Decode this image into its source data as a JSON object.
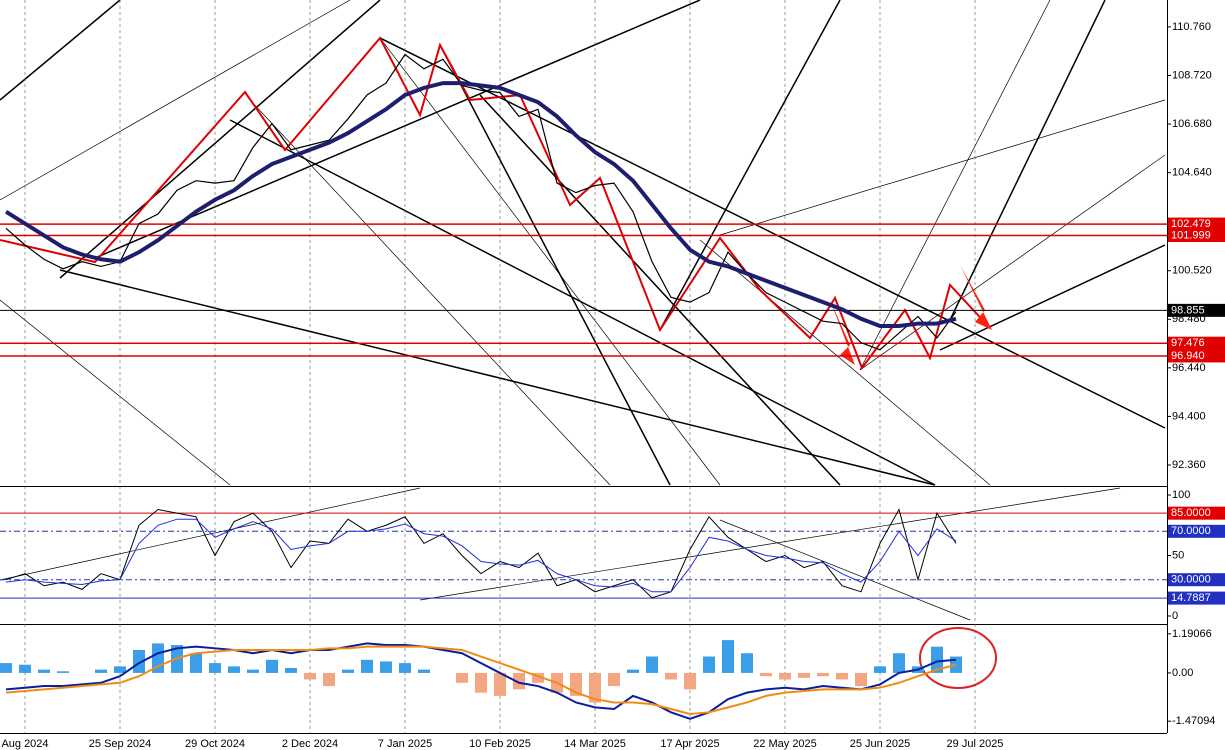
{
  "chart_data": [
    {
      "type": "line",
      "categories": [
        null,
        "Aug 2024",
        null,
        null,
        null,
        null,
        "25 Sep 2024",
        null,
        null,
        null,
        null,
        "29 Oct 2024",
        null,
        null,
        null,
        null,
        "2 Dec 2024",
        null,
        null,
        null,
        null,
        "7 Jan 2025",
        null,
        null,
        null,
        null,
        "10 Feb 2025",
        null,
        null,
        null,
        null,
        "14 Mar 2025",
        null,
        null,
        null,
        null,
        "17 Apr 2025",
        null,
        null,
        null,
        null,
        "22 May 2025",
        null,
        null,
        null,
        null,
        "25 Jun 2025",
        null,
        null,
        null,
        null,
        "29 Jul 2025"
      ],
      "series": [
        {
          "color": "#000000",
          "width": 1.2,
          "values": [
            102.3,
            101.6,
            101.0,
            100.6,
            100.9,
            100.7,
            100.9,
            102.5,
            102.9,
            103.9,
            104.3,
            104.2,
            104.3,
            105.7,
            106.7,
            105.6,
            105.8,
            106.0,
            106.9,
            107.9,
            108.4,
            109.6,
            109.0,
            109.4,
            108.3,
            108.1,
            108.0,
            107.0,
            107.3,
            104.2,
            103.8,
            104.1,
            104.2,
            103.0,
            100.9,
            99.4,
            99.2,
            99.6,
            101.3,
            100.4,
            99.6,
            99.2,
            98.8,
            98.4,
            98.3,
            97.5,
            97.2,
            97.9,
            98.6,
            97.7,
            98.8,
            null
          ]
        },
        {
          "color": "#1e1e6e",
          "width": 4,
          "values": [
            103.0,
            102.5,
            102.0,
            101.5,
            101.2,
            101.0,
            100.9,
            101.3,
            101.8,
            102.4,
            103.0,
            103.5,
            103.9,
            104.5,
            105.0,
            105.3,
            105.6,
            105.9,
            106.3,
            106.8,
            107.3,
            107.9,
            108.2,
            108.4,
            108.4,
            108.3,
            108.2,
            107.9,
            107.6,
            107.0,
            106.2,
            105.5,
            105.0,
            104.3,
            103.3,
            102.3,
            101.4,
            100.9,
            100.7,
            100.4,
            100.1,
            99.8,
            99.5,
            99.2,
            98.9,
            98.5,
            98.2,
            98.2,
            98.3,
            98.3,
            98.5,
            null
          ]
        }
      ],
      "ylim": [
        91.52,
        111.89
      ],
      "yticks": [
        {
          "value": 92.36,
          "label": "92.360"
        },
        {
          "value": 94.4,
          "label": "94.400"
        },
        {
          "value": 96.44,
          "label": "96.440"
        },
        {
          "value": 98.48,
          "label": "98.480"
        },
        {
          "value": 100.52,
          "label": "100.520"
        },
        {
          "value": 104.64,
          "label": "104.640"
        },
        {
          "value": 106.68,
          "label": "106.680"
        },
        {
          "value": 108.72,
          "label": "108.720"
        },
        {
          "value": 110.76,
          "label": "110.760"
        }
      ],
      "levels": [
        {
          "value": 102.479,
          "color": "#e00000"
        },
        {
          "value": 101.999,
          "color": "#e00000"
        },
        {
          "value": 98.855,
          "color": "#000000"
        },
        {
          "value": 97.476,
          "color": "#e00000"
        },
        {
          "value": 96.94,
          "label": "96.940",
          "color": "#e00000"
        }
      ],
      "grid": true
    },
    {
      "type": "line",
      "series": [
        {
          "color": "#000000",
          "width": 1,
          "values": [
            30,
            35,
            25,
            28,
            22,
            35,
            30,
            75,
            88,
            85,
            82,
            50,
            78,
            85,
            70,
            40,
            62,
            60,
            80,
            70,
            75,
            82,
            60,
            68,
            50,
            35,
            45,
            40,
            52,
            25,
            30,
            20,
            25,
            30,
            15,
            20,
            55,
            82,
            65,
            55,
            45,
            50,
            40,
            45,
            25,
            20,
            60,
            88,
            30,
            85,
            60,
            null
          ]
        },
        {
          "color": "#2030e0",
          "width": 1,
          "values": [
            28,
            30,
            28,
            27,
            26,
            29,
            30,
            60,
            75,
            80,
            80,
            65,
            72,
            78,
            72,
            55,
            58,
            60,
            70,
            70,
            72,
            76,
            68,
            66,
            58,
            45,
            43,
            42,
            46,
            35,
            30,
            25,
            24,
            27,
            20,
            20,
            40,
            65,
            62,
            55,
            50,
            48,
            45,
            44,
            35,
            28,
            45,
            70,
            50,
            72,
            62,
            null
          ]
        }
      ],
      "ylim": [
        -5.8,
        105.8
      ],
      "yticks": [
        0,
        50,
        100
      ],
      "levels": [
        {
          "value": 85,
          "label": "85.0000",
          "color": "#e00000"
        },
        {
          "value": 70,
          "label": "70.0000",
          "color": "#2030c0"
        },
        {
          "value": 30,
          "label": "30.0000",
          "color": "#2030c0"
        },
        {
          "value": 14.7887,
          "color": "#2030c0"
        }
      ]
    },
    {
      "type": "macd",
      "histogram": [
        0.3,
        0.25,
        0.1,
        0.05,
        0.0,
        0.1,
        0.2,
        0.7,
        0.9,
        0.85,
        0.6,
        0.3,
        0.2,
        0.1,
        0.4,
        0.15,
        -0.2,
        -0.4,
        0.1,
        0.4,
        0.35,
        0.3,
        0.1,
        0.0,
        -0.3,
        -0.6,
        -0.7,
        -0.5,
        -0.3,
        -0.6,
        -0.7,
        -0.9,
        -0.4,
        0.1,
        0.5,
        -0.2,
        -0.5,
        0.5,
        1.0,
        0.6,
        -0.1,
        -0.2,
        -0.15,
        -0.1,
        -0.2,
        -0.4,
        0.2,
        0.6,
        0.2,
        0.8,
        0.5,
        null
      ],
      "colors": {
        "positive": "#3a9ee8",
        "negative": "#f4a582"
      },
      "series": [
        {
          "color": "#0a1ea0",
          "width": 2,
          "values": [
            -0.5,
            -0.45,
            -0.4,
            -0.4,
            -0.35,
            -0.3,
            -0.1,
            0.3,
            0.6,
            0.75,
            0.8,
            0.75,
            0.7,
            0.6,
            0.7,
            0.6,
            0.7,
            0.7,
            0.8,
            0.9,
            0.85,
            0.85,
            0.8,
            0.7,
            0.6,
            0.3,
            0.0,
            -0.3,
            -0.4,
            -0.6,
            -0.9,
            -1.05,
            -1.1,
            -0.7,
            -0.9,
            -1.2,
            -1.4,
            -1.2,
            -0.8,
            -0.6,
            -0.5,
            -0.45,
            -0.5,
            -0.4,
            -0.45,
            -0.5,
            -0.35,
            0.0,
            0.1,
            0.35,
            0.4,
            null
          ]
        },
        {
          "color": "#f08c14",
          "width": 2,
          "values": [
            -0.6,
            -0.55,
            -0.5,
            -0.45,
            -0.4,
            -0.35,
            -0.3,
            -0.1,
            0.2,
            0.45,
            0.6,
            0.65,
            0.7,
            0.7,
            0.7,
            0.7,
            0.7,
            0.75,
            0.75,
            0.8,
            0.8,
            0.8,
            0.8,
            0.75,
            0.7,
            0.5,
            0.3,
            0.1,
            -0.1,
            -0.3,
            -0.6,
            -0.8,
            -0.9,
            -0.9,
            -0.95,
            -1.1,
            -1.25,
            -1.2,
            -1.05,
            -0.9,
            -0.7,
            -0.6,
            -0.55,
            -0.5,
            -0.5,
            -0.5,
            -0.45,
            -0.3,
            -0.1,
            0.1,
            0.25,
            null
          ]
        }
      ],
      "ylim": [
        -1.8,
        1.43
      ],
      "yticks": [
        {
          "value": -1.47094,
          "label": "-1.47094"
        },
        {
          "value": 0,
          "label": "0.00"
        },
        {
          "value": 1.19066,
          "label": "1.19066"
        }
      ]
    }
  ]
}
